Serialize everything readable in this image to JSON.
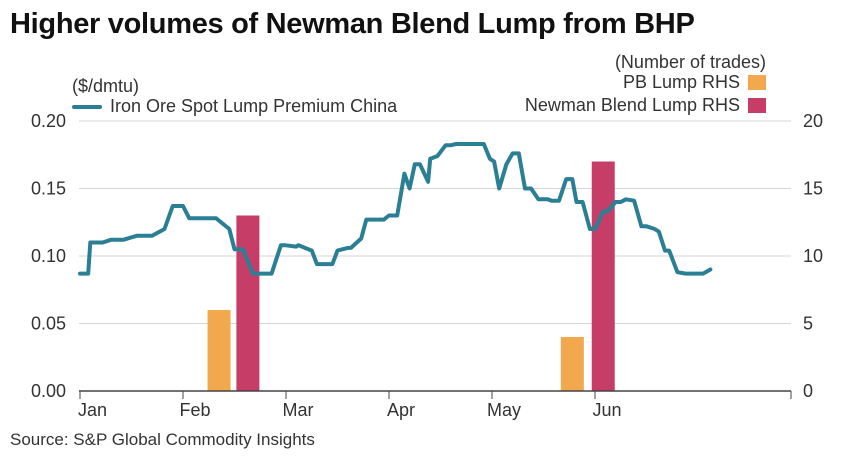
{
  "colors": {
    "line": "#2a7f95",
    "pb_bar": "#f2a94e",
    "newman_bar": "#c63d68",
    "grid": "#d6d6d6",
    "axis_text": "#333333"
  },
  "header": {
    "title": "Higher volumes of Newman Blend Lump from BHP"
  },
  "footer": {
    "source": "Source: S&P Global Commodity Insights"
  },
  "chart_data": {
    "type": "bar+line",
    "title": "Higher volumes of Newman Blend Lump from BHP",
    "y_left": {
      "label": "($/dmtu)",
      "ylim": [
        0,
        0.2
      ],
      "ticks": [
        "0.00",
        "0.05",
        "0.10",
        "0.15",
        "0.20"
      ]
    },
    "y_right": {
      "label": "(Number of trades)",
      "ylim": [
        0,
        20
      ],
      "ticks": [
        "0",
        "5",
        "10",
        "15",
        "20"
      ]
    },
    "x_ticks": [
      "Jan",
      "Feb",
      "Mar",
      "Apr",
      "May",
      "Jun"
    ],
    "legend": {
      "line": "Iron Ore Spot Lump Premium China",
      "pb": "PB Lump RHS",
      "newman": "Newman Blend Lump RHS"
    },
    "line_series": {
      "name": "Iron Ore Spot Lump Premium China",
      "axis": "left",
      "t": [
        0.0,
        0.08,
        0.1,
        0.22,
        0.3,
        0.35,
        0.42,
        0.55,
        0.58,
        0.62,
        0.7,
        0.82,
        0.9,
        0.98,
        1.0,
        1.06,
        1.2,
        1.22,
        1.26,
        1.32,
        1.45,
        1.5,
        1.58,
        1.68,
        1.72,
        1.78,
        1.86,
        1.95,
        1.99,
        2.1,
        2.12,
        2.25,
        2.3,
        2.37,
        2.45,
        2.5,
        2.6,
        2.63,
        2.73,
        2.78,
        2.85,
        2.95,
        3.0,
        3.08,
        3.15,
        3.2,
        3.25,
        3.3,
        3.38,
        3.4,
        3.47,
        3.55,
        3.6,
        3.65,
        3.72,
        3.8,
        3.85,
        3.92,
        3.98,
        4.02,
        4.07,
        4.14,
        4.2,
        4.26,
        4.32,
        4.38,
        4.45,
        4.5,
        4.54,
        4.58,
        4.65,
        4.72,
        4.78,
        4.82,
        4.88,
        4.95,
        5.0,
        5.08,
        5.12,
        5.2,
        5.25,
        5.3,
        5.38,
        5.45,
        5.5,
        5.58,
        5.62,
        5.68,
        5.72,
        5.8,
        5.88,
        5.93,
        5.98,
        6.05,
        6.12
      ],
      "values": [
        0.087,
        0.087,
        0.11,
        0.11,
        0.112,
        0.112,
        0.112,
        0.115,
        0.115,
        0.115,
        0.115,
        0.12,
        0.137,
        0.137,
        0.137,
        0.128,
        0.128,
        0.128,
        0.128,
        0.128,
        0.12,
        0.105,
        0.105,
        0.087,
        0.087,
        0.087,
        0.087,
        0.108,
        0.108,
        0.107,
        0.108,
        0.104,
        0.094,
        0.094,
        0.094,
        0.104,
        0.106,
        0.106,
        0.113,
        0.127,
        0.127,
        0.127,
        0.13,
        0.13,
        0.161,
        0.15,
        0.168,
        0.168,
        0.155,
        0.172,
        0.174,
        0.182,
        0.182,
        0.183,
        0.183,
        0.183,
        0.183,
        0.183,
        0.172,
        0.17,
        0.15,
        0.168,
        0.176,
        0.176,
        0.15,
        0.15,
        0.142,
        0.142,
        0.142,
        0.141,
        0.141,
        0.157,
        0.157,
        0.14,
        0.14,
        0.12,
        0.12,
        0.133,
        0.133,
        0.14,
        0.14,
        0.142,
        0.141,
        0.122,
        0.122,
        0.12,
        0.118,
        0.104,
        0.104,
        0.088,
        0.087,
        0.087,
        0.087,
        0.087,
        0.09
      ]
    },
    "bar_series": [
      {
        "name": "PB Lump RHS",
        "axis": "right",
        "bars": [
          {
            "t": 1.35,
            "value": 6
          },
          {
            "t": 4.78,
            "value": 4
          }
        ]
      },
      {
        "name": "Newman Blend Lump RHS",
        "axis": "right",
        "bars": [
          {
            "t": 1.63,
            "value": 13
          },
          {
            "t": 5.08,
            "value": 17
          }
        ]
      }
    ]
  }
}
